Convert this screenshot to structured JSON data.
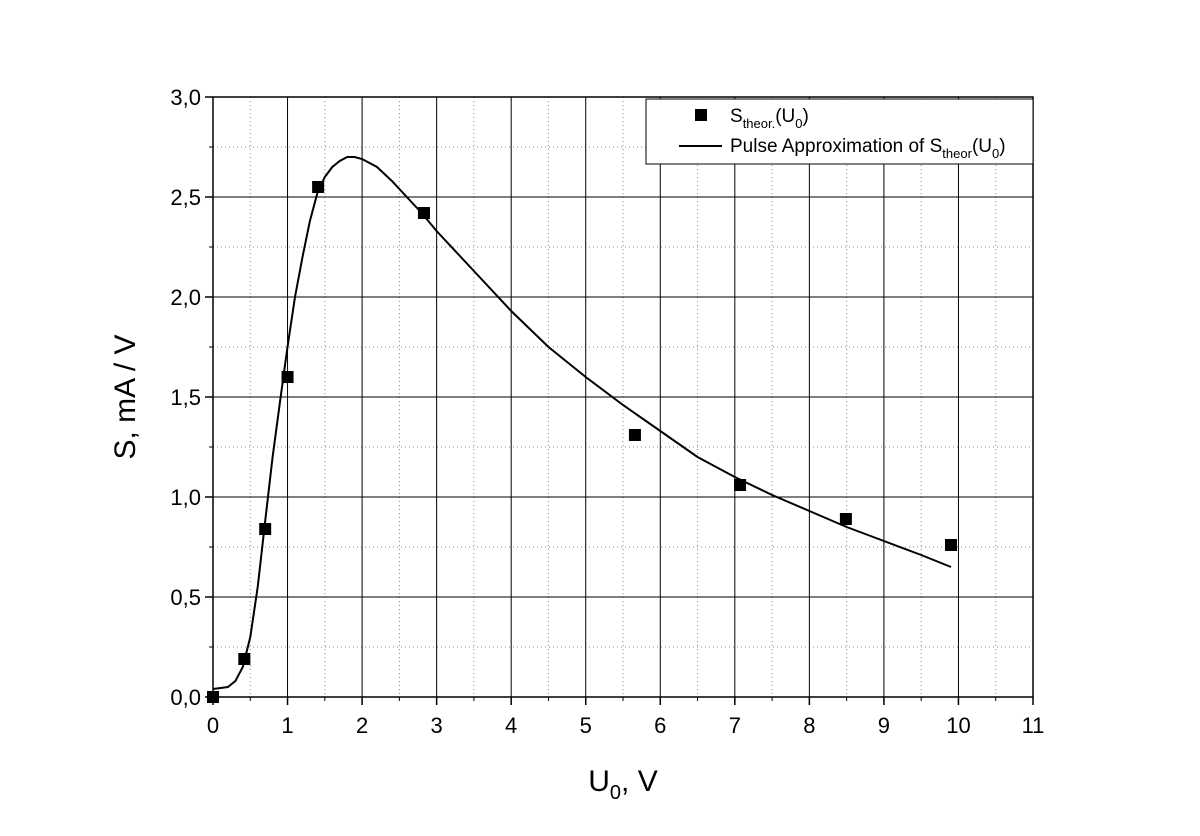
{
  "chart_data": {
    "type": "scatter",
    "xlabel": "U",
    "xlabel_sub": "0",
    "xlabel_suffix": ", V",
    "ylabel": "S, mA / V",
    "xlim": [
      0,
      11
    ],
    "ylim": [
      0,
      3
    ],
    "x_ticks": [
      0,
      1,
      2,
      3,
      4,
      5,
      6,
      7,
      8,
      9,
      10,
      11
    ],
    "x_tick_labels": [
      "0",
      "1",
      "2",
      "3",
      "4",
      "5",
      "6",
      "7",
      "8",
      "9",
      "10",
      "11"
    ],
    "y_ticks": [
      0,
      0.5,
      1.0,
      1.5,
      2.0,
      2.5,
      3.0
    ],
    "y_tick_labels": [
      "0,0",
      "0,5",
      "1,0",
      "1,5",
      "2,0",
      "2,5",
      "3,0"
    ],
    "grid": true,
    "legend_position": "top-right",
    "series": [
      {
        "name": "S_theor.(U_0)",
        "legend": {
          "main": "S",
          "sub": "theor.",
          "mid": "(U",
          "sub2": "0",
          "end": ")"
        },
        "kind": "scatter",
        "marker": "square",
        "x": [
          0,
          0.42,
          0.7,
          1.0,
          1.41,
          2.83,
          5.66,
          7.07,
          8.49,
          9.9
        ],
        "y": [
          0.0,
          0.19,
          0.84,
          1.6,
          2.55,
          2.42,
          1.31,
          1.06,
          0.89,
          0.76
        ]
      },
      {
        "name": "Pulse Approximation of S_theor(U_0)",
        "legend": {
          "main": "Pulse Approximation of S",
          "sub": "theor",
          "mid": "(U",
          "sub2": "0",
          "end": ")"
        },
        "kind": "line",
        "x": [
          0,
          0.1,
          0.2,
          0.3,
          0.4,
          0.5,
          0.6,
          0.7,
          0.8,
          0.9,
          1.0,
          1.1,
          1.2,
          1.3,
          1.4,
          1.5,
          1.6,
          1.7,
          1.8,
          1.9,
          2.0,
          2.2,
          2.4,
          2.6,
          2.8,
          3.0,
          3.5,
          4.0,
          4.5,
          5.0,
          5.5,
          6.0,
          6.5,
          7.0,
          7.5,
          8.0,
          8.5,
          9.0,
          9.5,
          9.9
        ],
        "y": [
          0.04,
          0.045,
          0.05,
          0.08,
          0.15,
          0.3,
          0.55,
          0.88,
          1.2,
          1.48,
          1.75,
          2.0,
          2.2,
          2.38,
          2.52,
          2.6,
          2.65,
          2.68,
          2.7,
          2.7,
          2.69,
          2.65,
          2.58,
          2.5,
          2.42,
          2.33,
          2.13,
          1.93,
          1.75,
          1.6,
          1.46,
          1.33,
          1.2,
          1.1,
          1.01,
          0.93,
          0.85,
          0.78,
          0.71,
          0.65
        ]
      }
    ]
  }
}
